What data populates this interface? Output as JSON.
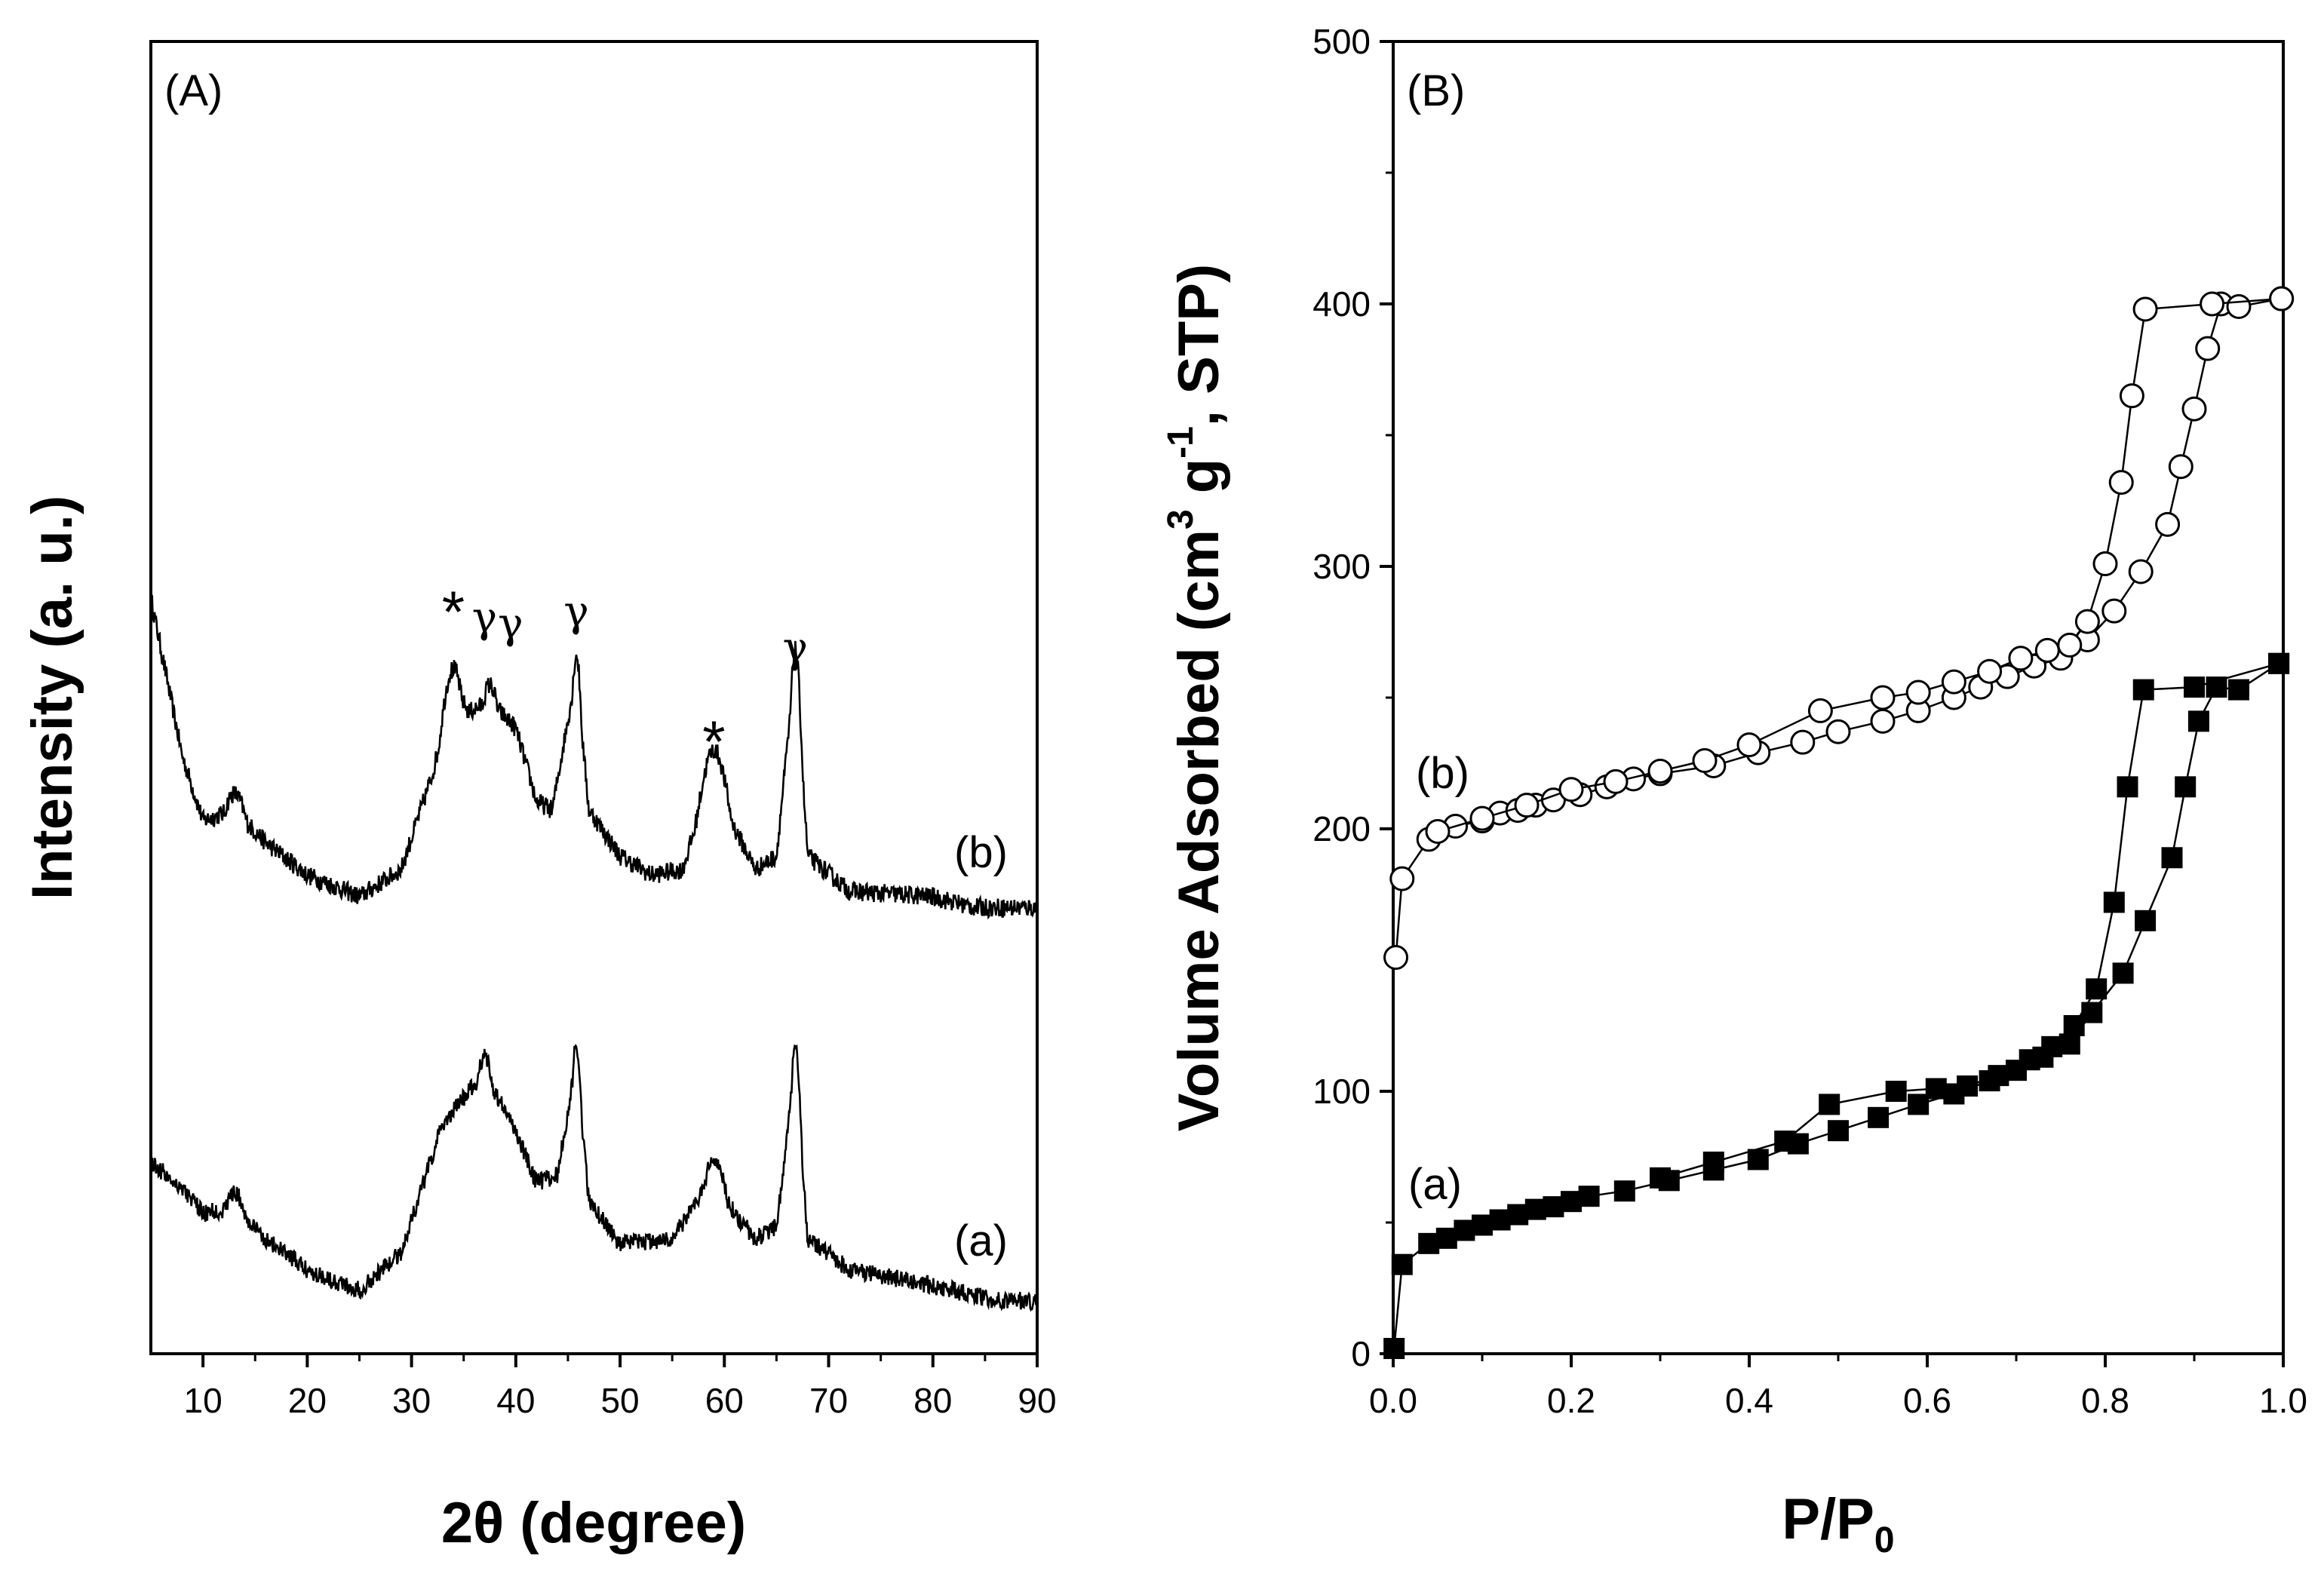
{
  "chart_data": [
    {
      "type": "line",
      "panel": "(A)",
      "xlabel": "2θ (degree)",
      "ylabel": "Intensity (a. u.)",
      "xlim": [
        5,
        90
      ],
      "xticks": [
        10,
        20,
        30,
        40,
        50,
        60,
        70,
        80,
        90
      ],
      "yticks": [],
      "series": [
        {
          "name": "(b)",
          "peaks": [
            [
              13,
              0.42
            ],
            [
              34,
              0.88
            ],
            [
              37.5,
              0.82
            ],
            [
              45.8,
              0.93
            ],
            [
              59,
              0.58
            ],
            [
              66.8,
              0.95
            ]
          ],
          "values_approx": [
            [
              5,
              1.2
            ],
            [
              8,
              0.62
            ],
            [
              10,
              0.38
            ],
            [
              13,
              0.42
            ],
            [
              16,
              0.3
            ],
            [
              20,
              0.18
            ],
            [
              25,
              0.1
            ],
            [
              29,
              0.2
            ],
            [
              32,
              0.55
            ],
            [
              34,
              0.88
            ],
            [
              35.5,
              0.78
            ],
            [
              37.5,
              0.82
            ],
            [
              40,
              0.72
            ],
            [
              42,
              0.45
            ],
            [
              43.5,
              0.42
            ],
            [
              45.8,
              0.93
            ],
            [
              47,
              0.42
            ],
            [
              50,
              0.25
            ],
            [
              53,
              0.18
            ],
            [
              56,
              0.2
            ],
            [
              59,
              0.58
            ],
            [
              61,
              0.35
            ],
            [
              63,
              0.2
            ],
            [
              65,
              0.25
            ],
            [
              66.8,
              0.95
            ],
            [
              68,
              0.25
            ],
            [
              72,
              0.12
            ],
            [
              80,
              0.1
            ],
            [
              90,
              0.0
            ]
          ]
        },
        {
          "name": "(a)",
          "peaks": [
            [
              13,
              0.42
            ],
            [
              37,
              0.95
            ],
            [
              45.8,
              1.0
            ],
            [
              59,
              0.55
            ],
            [
              66.8,
              0.98
            ]
          ],
          "values_approx": [
            [
              5,
              0.6
            ],
            [
              8,
              0.5
            ],
            [
              10,
              0.4
            ],
            [
              13,
              0.42
            ],
            [
              16,
              0.3
            ],
            [
              20,
              0.18
            ],
            [
              25,
              0.1
            ],
            [
              29,
              0.25
            ],
            [
              33,
              0.75
            ],
            [
              37,
              0.95
            ],
            [
              40,
              0.72
            ],
            [
              42,
              0.52
            ],
            [
              44,
              0.55
            ],
            [
              45.8,
              1.0
            ],
            [
              47,
              0.45
            ],
            [
              50,
              0.28
            ],
            [
              55,
              0.3
            ],
            [
              59,
              0.55
            ],
            [
              61,
              0.4
            ],
            [
              63,
              0.3
            ],
            [
              65,
              0.35
            ],
            [
              66.8,
              0.98
            ],
            [
              68,
              0.3
            ],
            [
              72,
              0.18
            ],
            [
              80,
              0.12
            ],
            [
              90,
              0.02
            ]
          ]
        }
      ],
      "annotations": [
        {
          "text": "*",
          "x": 34
        },
        {
          "text": "γ",
          "x": 37
        },
        {
          "text": "γ",
          "x": 39.5
        },
        {
          "text": "γ",
          "x": 45.8
        },
        {
          "text": "*",
          "x": 59
        },
        {
          "text": "γ",
          "x": 66.8
        }
      ]
    },
    {
      "type": "scatter",
      "panel": "(B)",
      "xlabel_main": "P/P",
      "xlabel_sub": "0",
      "ylabel_main": "Volume Adsorbed (cm",
      "ylabel_sup1": "3",
      "ylabel_mid": " g",
      "ylabel_sup2": "-1",
      "ylabel_end": ", STP)",
      "xlim": [
        0.0,
        1.0
      ],
      "ylim": [
        0,
        500
      ],
      "xticks": [
        "0.0",
        "0.2",
        "0.4",
        "0.6",
        "0.8",
        "1.0"
      ],
      "yticks": [
        "0",
        "100",
        "200",
        "300",
        "400",
        "500"
      ],
      "series": [
        {
          "name": "(a)",
          "marker": "filled-square",
          "adsorption": [
            [
              0.001,
              2
            ],
            [
              0.01,
              34
            ],
            [
              0.04,
              42
            ],
            [
              0.06,
              44
            ],
            [
              0.08,
              47
            ],
            [
              0.1,
              49
            ],
            [
              0.12,
              51
            ],
            [
              0.14,
              53
            ],
            [
              0.16,
              55
            ],
            [
              0.18,
              56
            ],
            [
              0.2,
              58
            ],
            [
              0.22,
              60
            ],
            [
              0.26,
              62
            ],
            [
              0.31,
              66
            ],
            [
              0.36,
              70
            ],
            [
              0.41,
              74
            ],
            [
              0.455,
              80
            ],
            [
              0.5,
              85
            ],
            [
              0.545,
              90
            ],
            [
              0.59,
              95
            ],
            [
              0.63,
              99
            ],
            [
              0.67,
              104
            ],
            [
              0.7,
              108
            ],
            [
              0.73,
              113
            ],
            [
              0.76,
              118
            ],
            [
              0.785,
              130
            ],
            [
              0.82,
              145
            ],
            [
              0.845,
              165
            ],
            [
              0.875,
              189
            ],
            [
              0.89,
              216
            ],
            [
              0.905,
              241
            ],
            [
              0.925,
              254
            ],
            [
              0.95,
              253
            ],
            [
              0.995,
              263
            ]
          ],
          "desorption": [
            [
              0.995,
              263
            ],
            [
              0.9,
              254
            ],
            [
              0.843,
              253
            ],
            [
              0.825,
              216
            ],
            [
              0.81,
              172
            ],
            [
              0.79,
              139
            ],
            [
              0.765,
              125
            ],
            [
              0.74,
              117
            ],
            [
              0.715,
              112
            ],
            [
              0.68,
              106
            ],
            [
              0.645,
              102
            ],
            [
              0.61,
              101
            ],
            [
              0.565,
              100
            ],
            [
              0.49,
              95
            ],
            [
              0.44,
              81
            ],
            [
              0.36,
              73
            ],
            [
              0.3,
              67
            ]
          ]
        },
        {
          "name": "(b)",
          "marker": "open-circle",
          "adsorption": [
            [
              0.003,
              151
            ],
            [
              0.01,
              181
            ],
            [
              0.04,
              196
            ],
            [
              0.07,
              201
            ],
            [
              0.1,
              203
            ],
            [
              0.12,
              206
            ],
            [
              0.14,
              207
            ],
            [
              0.16,
              209
            ],
            [
              0.18,
              211
            ],
            [
              0.21,
              213
            ],
            [
              0.24,
              216
            ],
            [
              0.27,
              219
            ],
            [
              0.3,
              221
            ],
            [
              0.36,
              224
            ],
            [
              0.41,
              229
            ],
            [
              0.46,
              233
            ],
            [
              0.5,
              237
            ],
            [
              0.55,
              241
            ],
            [
              0.59,
              245
            ],
            [
              0.63,
              250
            ],
            [
              0.66,
              254
            ],
            [
              0.69,
              258
            ],
            [
              0.72,
              262
            ],
            [
              0.75,
              265
            ],
            [
              0.78,
              272
            ],
            [
              0.81,
              283
            ],
            [
              0.84,
              298
            ],
            [
              0.87,
              316
            ],
            [
              0.885,
              338
            ],
            [
              0.9,
              360
            ],
            [
              0.915,
              383
            ],
            [
              0.93,
              400
            ],
            [
              0.95,
              399
            ],
            [
              0.998,
              402
            ]
          ],
          "desorption": [
            [
              0.998,
              402
            ],
            [
              0.92,
              400
            ],
            [
              0.845,
              398
            ],
            [
              0.83,
              365
            ],
            [
              0.818,
              332
            ],
            [
              0.8,
              301
            ],
            [
              0.78,
              279
            ],
            [
              0.76,
              270
            ],
            [
              0.735,
              268
            ],
            [
              0.705,
              265
            ],
            [
              0.67,
              260
            ],
            [
              0.63,
              256
            ],
            [
              0.59,
              252
            ],
            [
              0.55,
              250
            ],
            [
              0.48,
              245
            ],
            [
              0.4,
              232
            ],
            [
              0.35,
              226
            ],
            [
              0.3,
              222
            ],
            [
              0.25,
              218
            ],
            [
              0.2,
              215
            ],
            [
              0.15,
              209
            ],
            [
              0.1,
              204
            ],
            [
              0.05,
              199
            ]
          ]
        }
      ]
    }
  ]
}
